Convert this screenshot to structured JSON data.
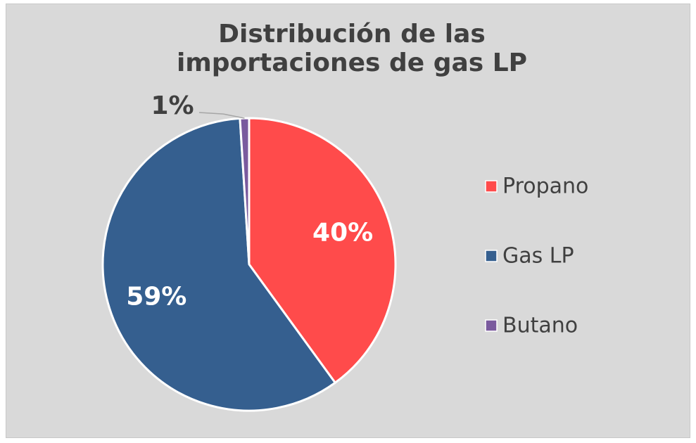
{
  "chart_data": {
    "type": "pie",
    "title": "Distribución de las importaciones de gas LP",
    "categories": [
      "Propano",
      "Gas LP",
      "Butano"
    ],
    "values": [
      40,
      59,
      1
    ],
    "value_labels": [
      "40%",
      "59%",
      "1%"
    ],
    "colors": [
      "#ff4b4b",
      "#355f8f",
      "#7a5a9e"
    ],
    "legend": "right"
  }
}
